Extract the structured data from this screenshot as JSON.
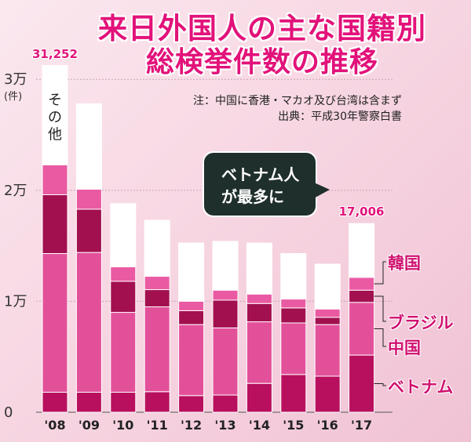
{
  "header": {
    "title_line1": "来日外国人の主な国籍別",
    "title_line2": "総検挙件数の推移",
    "note": "注：中国に香港・マカオ及び台湾は含まず",
    "source": "出典：平成30年警察白書"
  },
  "callout": {
    "line1": "ベトナム人",
    "line2": "が最多に"
  },
  "axis": {
    "unit_label": "(件)"
  },
  "colors": {
    "vietnam": "#b8105e",
    "china": "#e3509a",
    "brazil": "#a3104f",
    "korea": "#ea5aa3",
    "other": "#ffffff",
    "accent": "#e2127a"
  },
  "chart_data": {
    "type": "bar",
    "stacked": true,
    "categories": [
      "'08",
      "'09",
      "'10",
      "'11",
      "'12",
      "'13",
      "'14",
      "'15",
      "'16",
      "'17"
    ],
    "y_ticks": [
      {
        "value": 0,
        "label": "0"
      },
      {
        "value": 10000,
        "label": "1万"
      },
      {
        "value": 20000,
        "label": "2万"
      },
      {
        "value": 30000,
        "label": "3万"
      }
    ],
    "ylim": [
      0,
      31500
    ],
    "series": [
      {
        "name": "ベトナム",
        "color_key": "vietnam",
        "values": [
          1800,
          1800,
          1800,
          1850,
          1500,
          1550,
          2600,
          3400,
          3250,
          5150
        ]
      },
      {
        "name": "中国",
        "color_key": "china",
        "values": [
          12500,
          12600,
          7200,
          7650,
          6400,
          6050,
          5550,
          4650,
          4650,
          4750
        ]
      },
      {
        "name": "ブラジル",
        "color_key": "brazil",
        "values": [
          5300,
          3900,
          2800,
          1550,
          1250,
          2500,
          1650,
          1350,
          650,
          1100
        ]
      },
      {
        "name": "韓国",
        "color_key": "korea",
        "values": [
          2700,
          1800,
          1300,
          1200,
          850,
          900,
          850,
          800,
          750,
          1150
        ]
      },
      {
        "name": "その他",
        "color_key": "other",
        "values": [
          8952,
          7700,
          5700,
          5050,
          5250,
          4400,
          4600,
          4100,
          4050,
          4856
        ]
      }
    ],
    "total_labels": [
      {
        "index": 0,
        "label": "31,252"
      },
      {
        "index": 9,
        "label": "17,006"
      }
    ],
    "legend_labels": [
      "韓国",
      "ブラジル",
      "中国",
      "ベトナム"
    ]
  }
}
